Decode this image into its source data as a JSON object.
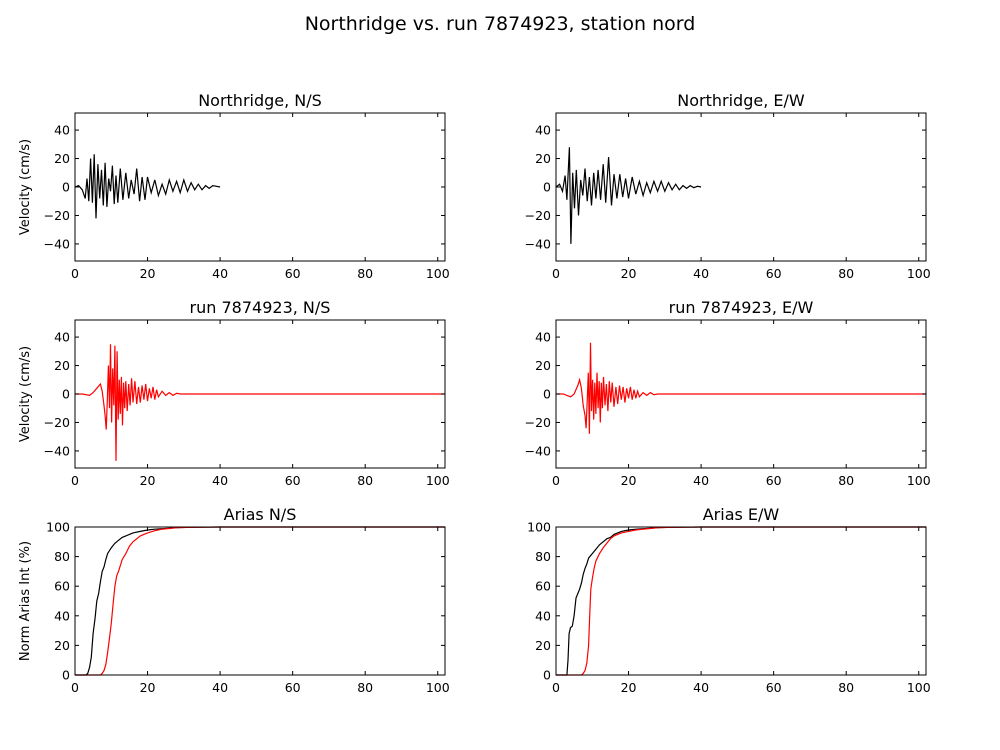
{
  "figure": {
    "title": "Northridge vs. run 7874923, station nord",
    "colors": {
      "recorded": "#000000",
      "simulated": "#ff0000"
    }
  },
  "chart_data": [
    {
      "type": "line",
      "title": "Northridge, N/S",
      "xlabel": "",
      "ylabel": "Velocity (cm/s)",
      "xlim": [
        0,
        102
      ],
      "ylim": [
        -52,
        52
      ],
      "xticks": [
        "0",
        "20",
        "40",
        "60",
        "80",
        "100"
      ],
      "yticks": [
        "40",
        "20",
        "0",
        "−20",
        "−40"
      ],
      "series": [
        {
          "color": "#000000",
          "x": [
            0,
            1,
            2,
            2.8,
            3.3,
            3.8,
            4.3,
            4.8,
            5.3,
            5.8,
            6.3,
            6.8,
            7.3,
            7.8,
            8.3,
            8.8,
            9.3,
            9.8,
            10.3,
            10.8,
            11.3,
            11.8,
            12.5,
            13.2,
            14,
            14.8,
            15.5,
            16.3,
            17,
            17.8,
            18.5,
            19.3,
            20,
            21,
            22,
            23,
            24,
            25,
            26,
            27,
            28,
            29,
            30,
            31,
            32,
            33,
            34,
            35,
            36,
            37,
            38,
            39,
            40
          ],
          "y": [
            0,
            1,
            -2,
            -8,
            6,
            -10,
            20,
            -11,
            23,
            -22,
            16,
            -8,
            12,
            -13,
            17,
            -14,
            6,
            -3,
            15,
            -12,
            8,
            -11,
            13,
            -9,
            10,
            -8,
            5,
            -5,
            13,
            -10,
            7,
            -9,
            7,
            -4,
            5,
            -6,
            2,
            -5,
            5,
            -3,
            4,
            -4,
            5,
            -3,
            3,
            -2,
            2,
            -2,
            1,
            -1,
            1,
            0.5,
            0
          ]
        }
      ]
    },
    {
      "type": "line",
      "title": "Northridge, E/W",
      "xlabel": "",
      "ylabel": "",
      "xlim": [
        0,
        102
      ],
      "ylim": [
        -52,
        52
      ],
      "xticks": [
        "0",
        "20",
        "40",
        "60",
        "80",
        "100"
      ],
      "yticks": [
        "40",
        "20",
        "0",
        "−20",
        "−40"
      ],
      "series": [
        {
          "color": "#000000",
          "x": [
            0,
            1,
            1.8,
            2.5,
            3,
            3.4,
            3.7,
            4.1,
            4.6,
            5.1,
            5.6,
            6.2,
            6.8,
            7.4,
            8,
            8.6,
            9.2,
            9.8,
            10.4,
            11,
            11.6,
            12.3,
            13,
            13.7,
            14.5,
            15.3,
            16,
            16.8,
            17.6,
            18.4,
            19.2,
            20,
            21,
            22,
            23,
            24,
            25,
            26,
            27,
            28,
            29,
            30,
            31,
            32,
            33,
            34,
            35,
            36,
            37,
            38,
            39,
            40
          ],
          "y": [
            0,
            2,
            -3,
            8,
            -9,
            12,
            28,
            -40,
            10,
            -15,
            12,
            -20,
            5,
            -6,
            13,
            -10,
            7,
            -13,
            10,
            -8,
            12,
            -9,
            16,
            -11,
            21,
            -13,
            9,
            -8,
            9,
            -7,
            6,
            -8,
            7,
            -5,
            4,
            -6,
            3,
            -4,
            4,
            -3,
            4,
            -3,
            3,
            -2,
            2,
            -2,
            1,
            -1,
            1,
            -0.5,
            0.5,
            0
          ]
        }
      ]
    },
    {
      "type": "line",
      "title": "run 7874923, N/S",
      "xlabel": "",
      "ylabel": "Velocity (cm/s)",
      "xlim": [
        0,
        102
      ],
      "ylim": [
        -52,
        52
      ],
      "xticks": [
        "0",
        "20",
        "40",
        "60",
        "80",
        "100"
      ],
      "yticks": [
        "40",
        "20",
        "0",
        "−20",
        "−40"
      ],
      "series": [
        {
          "color": "#ff0000",
          "x": [
            0,
            2,
            4,
            5,
            6,
            7,
            7.5,
            8,
            8.3,
            8.6,
            8.9,
            9.2,
            9.5,
            9.8,
            10.1,
            10.4,
            10.7,
            11,
            11.3,
            11.6,
            11.9,
            12.2,
            12.5,
            12.8,
            13.1,
            13.4,
            13.7,
            14,
            14.4,
            14.8,
            15.2,
            15.6,
            16,
            16.5,
            17,
            17.5,
            18,
            18.5,
            19,
            19.5,
            20,
            20.5,
            21,
            21.5,
            22,
            22.5,
            23,
            24,
            25,
            26,
            27,
            28,
            29,
            30,
            35,
            40,
            50,
            60,
            70,
            80,
            90,
            100,
            102
          ],
          "y": [
            0,
            0,
            -1,
            1,
            4,
            7,
            2,
            -8,
            -15,
            -25,
            -5,
            20,
            -10,
            35,
            -20,
            18,
            -8,
            34,
            -47,
            30,
            -18,
            10,
            -14,
            12,
            -22,
            8,
            -10,
            9,
            -12,
            7,
            -8,
            11,
            -6,
            9,
            -7,
            5,
            -6,
            6,
            -4,
            7,
            -5,
            4,
            -3,
            5,
            -4,
            3,
            -2,
            2,
            -1,
            1,
            -1,
            0.5,
            0,
            0,
            0,
            0,
            0,
            0,
            0,
            0,
            0,
            0,
            0
          ]
        }
      ]
    },
    {
      "type": "line",
      "title": "run 7874923, E/W",
      "xlabel": "",
      "ylabel": "",
      "xlim": [
        0,
        102
      ],
      "ylim": [
        -52,
        52
      ],
      "xticks": [
        "0",
        "20",
        "40",
        "60",
        "80",
        "100"
      ],
      "yticks": [
        "40",
        "20",
        "0",
        "−20",
        "−40"
      ],
      "series": [
        {
          "color": "#ff0000",
          "x": [
            0,
            2,
            3,
            4,
            5,
            6,
            6.5,
            7,
            7.5,
            8,
            8.3,
            8.6,
            8.9,
            9.2,
            9.5,
            9.8,
            10.1,
            10.4,
            10.7,
            11,
            11.3,
            11.6,
            11.9,
            12.2,
            12.5,
            12.8,
            13.1,
            13.5,
            13.9,
            14.3,
            14.7,
            15.1,
            15.5,
            16,
            16.5,
            17,
            17.5,
            18,
            18.5,
            19,
            19.5,
            20,
            20.5,
            21,
            21.5,
            22,
            22.5,
            23,
            24,
            25,
            26,
            27,
            28,
            30,
            35,
            40,
            50,
            60,
            70,
            80,
            90,
            100,
            102
          ],
          "y": [
            0,
            0,
            -1,
            -2,
            0,
            6,
            10,
            4,
            -8,
            -15,
            -24,
            -5,
            15,
            -28,
            36,
            -12,
            10,
            -18,
            8,
            -14,
            15,
            -10,
            9,
            -20,
            8,
            -10,
            12,
            -8,
            7,
            -12,
            9,
            -6,
            8,
            -9,
            5,
            -7,
            6,
            -4,
            5,
            -6,
            4,
            -3,
            5,
            -4,
            3,
            -3,
            2,
            -2,
            1,
            -1,
            1,
            -0.5,
            0,
            0,
            0,
            0,
            0,
            0,
            0,
            0,
            0,
            0,
            0
          ]
        }
      ]
    },
    {
      "type": "line",
      "title": "Arias N/S",
      "xlabel": "",
      "ylabel": "Norm Arias Int (%)",
      "xlim": [
        0,
        102
      ],
      "ylim": [
        0,
        100
      ],
      "xticks": [
        "0",
        "20",
        "40",
        "60",
        "80",
        "100"
      ],
      "yticks": [
        "100",
        "80",
        "60",
        "40",
        "20",
        "0"
      ],
      "series": [
        {
          "color": "#000000",
          "x": [
            0,
            2,
            3,
            3.5,
            4,
            4.5,
            5,
            5.5,
            6,
            6.5,
            7,
            7.5,
            8,
            8.5,
            9,
            10,
            11,
            12,
            13,
            14,
            15,
            16,
            18,
            20,
            22,
            25,
            28,
            32,
            40,
            50,
            60,
            70,
            80,
            90,
            100,
            102
          ],
          "y": [
            0,
            0,
            0,
            1,
            5,
            12,
            28,
            38,
            50,
            55,
            63,
            70,
            73,
            78,
            82,
            86,
            89,
            91,
            93,
            94,
            95,
            96,
            97,
            98,
            98.5,
            99,
            99.5,
            99.8,
            100,
            100,
            100,
            100,
            100,
            100,
            100,
            100
          ]
        },
        {
          "color": "#ff0000",
          "x": [
            0,
            6,
            7,
            7.5,
            8,
            8.5,
            9,
            9.5,
            10,
            10.5,
            11,
            11.5,
            12,
            13,
            14,
            15,
            16,
            17,
            18,
            20,
            22,
            24,
            26,
            28,
            32,
            40,
            50,
            60,
            70,
            80,
            90,
            100,
            102
          ],
          "y": [
            0,
            0,
            0,
            1,
            3,
            7,
            15,
            25,
            35,
            48,
            60,
            67,
            70,
            78,
            82,
            87,
            90,
            92,
            94,
            96,
            97.5,
            98.5,
            99,
            99.5,
            99.8,
            100,
            100,
            100,
            100,
            100,
            100,
            100,
            100
          ]
        }
      ]
    },
    {
      "type": "line",
      "title": "Arias E/W",
      "xlabel": "",
      "ylabel": "",
      "xlim": [
        0,
        102
      ],
      "ylim": [
        0,
        100
      ],
      "xticks": [
        "0",
        "20",
        "40",
        "60",
        "80",
        "100"
      ],
      "yticks": [
        "100",
        "80",
        "60",
        "40",
        "20",
        "0"
      ],
      "series": [
        {
          "color": "#000000",
          "x": [
            0,
            2,
            3,
            3.3,
            3.6,
            4,
            4.5,
            5,
            5.5,
            6,
            6.5,
            7,
            7.5,
            8,
            8.5,
            9,
            10,
            11,
            12,
            13,
            14,
            15,
            16,
            18,
            20,
            22,
            25,
            28,
            32,
            40,
            50,
            60,
            70,
            80,
            90,
            100,
            102
          ],
          "y": [
            0,
            0,
            0,
            10,
            28,
            32,
            33,
            40,
            52,
            55,
            58,
            62,
            68,
            72,
            75,
            79,
            82,
            85,
            88,
            90,
            92,
            93,
            95,
            97,
            98,
            98.5,
            99,
            99.5,
            99.8,
            100,
            100,
            100,
            100,
            100,
            100,
            100,
            100
          ]
        },
        {
          "color": "#ff0000",
          "x": [
            0,
            6,
            7,
            7.5,
            8,
            8.5,
            9,
            9.3,
            9.6,
            10,
            10.5,
            11,
            12,
            13,
            14,
            15,
            16,
            17,
            18,
            20,
            22,
            24,
            26,
            28,
            32,
            40,
            50,
            60,
            70,
            80,
            90,
            100,
            102
          ],
          "y": [
            0,
            0,
            0,
            1,
            3,
            8,
            20,
            40,
            58,
            65,
            72,
            77,
            82,
            86,
            89,
            92,
            94,
            95,
            96,
            97,
            98,
            98.5,
            99,
            99.5,
            99.8,
            100,
            100,
            100,
            100,
            100,
            100,
            100,
            100
          ]
        }
      ]
    }
  ]
}
